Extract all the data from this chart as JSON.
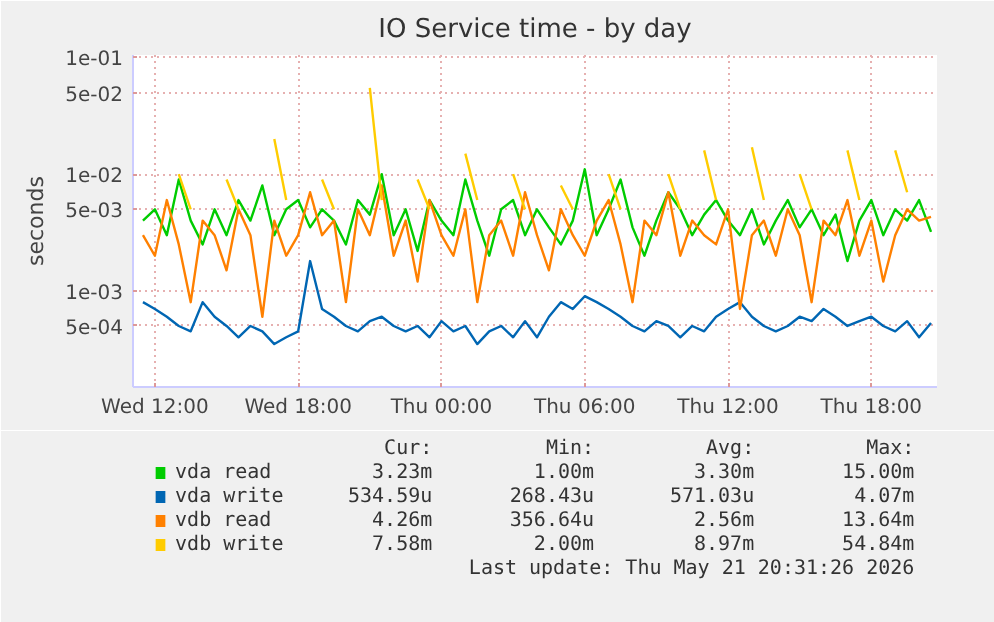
{
  "chart_data": {
    "type": "line",
    "title": "IO Service time - by day",
    "ylabel": "seconds",
    "log": "y",
    "grid": true,
    "legend": "bottom",
    "marker": "none",
    "line_style": "solid",
    "xlim": [
      "2026-05-20T11:05",
      "2026-05-21T20:45"
    ],
    "ylim": [
      0.00015,
      0.105
    ],
    "xticks": [
      {
        "value": "2026-05-20T12:00",
        "label": "Wed 12:00"
      },
      {
        "value": "2026-05-20T18:00",
        "label": "Wed 18:00"
      },
      {
        "value": "2026-05-21T00:00",
        "label": "Thu 00:00"
      },
      {
        "value": "2026-05-21T06:00",
        "label": "Thu 06:00"
      },
      {
        "value": "2026-05-21T12:00",
        "label": "Thu 12:00"
      },
      {
        "value": "2026-05-21T18:00",
        "label": "Thu 18:00"
      }
    ],
    "yticks": [
      {
        "value": 0.1,
        "label": "1e-01"
      },
      {
        "value": 0.05,
        "label": "5e-02"
      },
      {
        "value": 0.01,
        "label": "1e-02"
      },
      {
        "value": 0.005,
        "label": "5e-03"
      },
      {
        "value": 0.001,
        "label": "1e-03"
      },
      {
        "value": 0.0005,
        "label": "5e-04"
      }
    ],
    "x": [
      "2026-05-20T11:30",
      "2026-05-20T12:00",
      "2026-05-20T12:30",
      "2026-05-20T13:00",
      "2026-05-20T13:30",
      "2026-05-20T14:00",
      "2026-05-20T14:30",
      "2026-05-20T15:00",
      "2026-05-20T15:30",
      "2026-05-20T16:00",
      "2026-05-20T16:30",
      "2026-05-20T17:00",
      "2026-05-20T17:30",
      "2026-05-20T18:00",
      "2026-05-20T18:30",
      "2026-05-20T19:00",
      "2026-05-20T19:30",
      "2026-05-20T20:00",
      "2026-05-20T20:30",
      "2026-05-20T21:00",
      "2026-05-20T21:30",
      "2026-05-20T22:00",
      "2026-05-20T22:30",
      "2026-05-20T23:00",
      "2026-05-20T23:30",
      "2026-05-21T00:00",
      "2026-05-21T00:30",
      "2026-05-21T01:00",
      "2026-05-21T01:30",
      "2026-05-21T02:00",
      "2026-05-21T02:30",
      "2026-05-21T03:00",
      "2026-05-21T03:30",
      "2026-05-21T04:00",
      "2026-05-21T04:30",
      "2026-05-21T05:00",
      "2026-05-21T05:30",
      "2026-05-21T06:00",
      "2026-05-21T06:30",
      "2026-05-21T07:00",
      "2026-05-21T07:30",
      "2026-05-21T08:00",
      "2026-05-21T08:30",
      "2026-05-21T09:00",
      "2026-05-21T09:30",
      "2026-05-21T10:00",
      "2026-05-21T10:30",
      "2026-05-21T11:00",
      "2026-05-21T11:30",
      "2026-05-21T12:00",
      "2026-05-21T12:30",
      "2026-05-21T13:00",
      "2026-05-21T13:30",
      "2026-05-21T14:00",
      "2026-05-21T14:30",
      "2026-05-21T15:00",
      "2026-05-21T15:30",
      "2026-05-21T16:00",
      "2026-05-21T16:30",
      "2026-05-21T17:00",
      "2026-05-21T17:30",
      "2026-05-21T18:00",
      "2026-05-21T18:30",
      "2026-05-21T19:00",
      "2026-05-21T19:30",
      "2026-05-21T20:00",
      "2026-05-21T20:30"
    ],
    "series": [
      {
        "name": "vda read",
        "color": "#00cc00",
        "values": [
          0.004,
          0.005,
          0.003,
          0.009,
          0.004,
          0.0025,
          0.005,
          0.003,
          0.006,
          0.004,
          0.008,
          0.003,
          0.005,
          0.006,
          0.0035,
          0.005,
          0.004,
          0.0025,
          0.006,
          0.0045,
          0.01,
          0.003,
          0.005,
          0.0022,
          0.006,
          0.004,
          0.003,
          0.009,
          0.004,
          0.002,
          0.005,
          0.006,
          0.003,
          0.005,
          0.0035,
          0.0025,
          0.004,
          0.011,
          0.003,
          0.005,
          0.009,
          0.0035,
          0.002,
          0.004,
          0.007,
          0.005,
          0.003,
          0.0045,
          0.006,
          0.004,
          0.003,
          0.005,
          0.0025,
          0.004,
          0.006,
          0.0035,
          0.005,
          0.003,
          0.0045,
          0.0018,
          0.004,
          0.006,
          0.003,
          0.005,
          0.004,
          0.006,
          0.0032
        ]
      },
      {
        "name": "vda write",
        "color": "#0066b3",
        "values": [
          0.0008,
          0.0007,
          0.0006,
          0.0005,
          0.00045,
          0.0008,
          0.0006,
          0.0005,
          0.0004,
          0.0005,
          0.00045,
          0.00035,
          0.0004,
          0.00045,
          0.0018,
          0.0007,
          0.0006,
          0.0005,
          0.00045,
          0.00055,
          0.0006,
          0.0005,
          0.00045,
          0.0005,
          0.0004,
          0.00055,
          0.00045,
          0.0005,
          0.00035,
          0.00045,
          0.0005,
          0.0004,
          0.00055,
          0.0004,
          0.0006,
          0.0008,
          0.0007,
          0.0009,
          0.0008,
          0.0007,
          0.0006,
          0.0005,
          0.00045,
          0.00055,
          0.0005,
          0.0004,
          0.0005,
          0.00045,
          0.0006,
          0.0007,
          0.0008,
          0.0006,
          0.0005,
          0.00045,
          0.0005,
          0.0006,
          0.00055,
          0.0007,
          0.0006,
          0.0005,
          0.00055,
          0.0006,
          0.0005,
          0.00045,
          0.00055,
          0.0004,
          0.00053
        ]
      },
      {
        "name": "vdb read",
        "color": "#ff8000",
        "values": [
          0.003,
          0.002,
          0.006,
          0.0025,
          0.0008,
          0.004,
          0.003,
          0.0015,
          0.005,
          0.003,
          0.0006,
          0.004,
          0.002,
          0.003,
          0.007,
          0.003,
          0.004,
          0.0008,
          0.005,
          0.003,
          0.008,
          0.002,
          0.004,
          0.0012,
          0.006,
          0.003,
          0.002,
          0.005,
          0.0008,
          0.003,
          0.004,
          0.002,
          0.007,
          0.003,
          0.0015,
          0.005,
          0.003,
          0.002,
          0.004,
          0.006,
          0.0025,
          0.0008,
          0.004,
          0.003,
          0.007,
          0.002,
          0.004,
          0.003,
          0.0025,
          0.005,
          0.0007,
          0.003,
          0.004,
          0.002,
          0.005,
          0.003,
          0.0008,
          0.004,
          0.003,
          0.006,
          0.002,
          0.004,
          0.0012,
          0.003,
          0.005,
          0.004,
          0.0043
        ]
      },
      {
        "name": "vdb write",
        "color": "#ffcc00",
        "values": [
          null,
          null,
          null,
          0.01,
          0.005,
          null,
          null,
          0.009,
          0.005,
          null,
          null,
          0.02,
          0.006,
          null,
          null,
          0.009,
          0.005,
          null,
          null,
          0.055,
          0.006,
          null,
          null,
          0.009,
          0.005,
          null,
          null,
          0.015,
          0.006,
          null,
          null,
          0.01,
          0.005,
          null,
          null,
          0.008,
          0.005,
          null,
          null,
          0.01,
          0.005,
          null,
          null,
          null,
          0.01,
          0.005,
          null,
          0.016,
          0.006,
          null,
          null,
          0.017,
          0.006,
          null,
          null,
          0.01,
          0.005,
          null,
          null,
          0.016,
          0.006,
          null,
          null,
          0.016,
          0.007,
          null,
          null
        ]
      }
    ],
    "annotations": [
      "Cur:",
      "Min:",
      "Avg:",
      "Max:",
      "3.23m",
      "1.00m",
      "3.30m",
      "15.00m",
      "534.59u",
      "268.43u",
      "571.03u",
      "4.07m",
      "4.26m",
      "356.64u",
      "2.56m",
      "13.64m",
      "7.58m",
      "2.00m",
      "8.97m",
      "54.84m",
      "Last update: Thu May 21 20:31:26 2026"
    ]
  }
}
